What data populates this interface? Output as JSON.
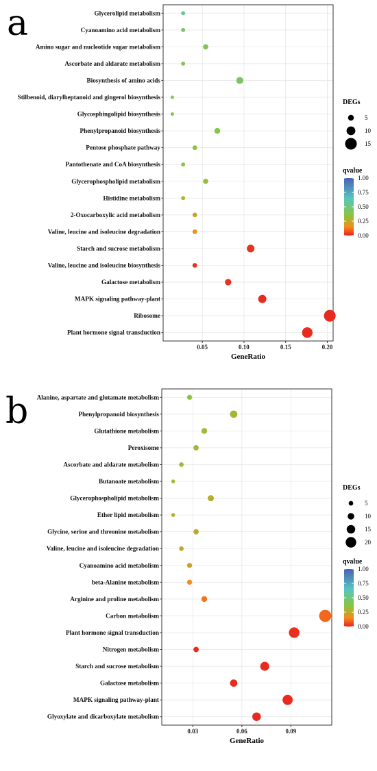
{
  "colors": {
    "grid": "#e6e6e6",
    "axis": "#333333",
    "scale": [
      "#e8231e",
      "#f58a1c",
      "#8cc43c",
      "#56c6c0",
      "#4b60b7"
    ]
  },
  "chart_data": [
    {
      "panel": "a",
      "type": "scatter",
      "xlabel": "GeneRatio",
      "xticks": [
        0.05,
        0.1,
        0.15,
        0.2
      ],
      "xtick_labels": [
        "0.05",
        "0.10",
        "0.15",
        "0.20"
      ],
      "xlim": [
        0.003,
        0.207
      ],
      "size_legend": {
        "title": "DEGs",
        "values": [
          5,
          10,
          15
        ],
        "labels": [
          "5",
          "10",
          "15"
        ]
      },
      "color_legend": {
        "title": "qvalue",
        "range": [
          0,
          1
        ],
        "labels": [
          "1.00",
          "0.75",
          "0.50",
          "0.25",
          "0.00"
        ]
      },
      "points": [
        {
          "term": "Glycerolipid metabolism",
          "x": 0.027,
          "count": 2,
          "q": 0.55
        },
        {
          "term": "Cyanoamino acid metabolism",
          "x": 0.027,
          "count": 2,
          "q": 0.45
        },
        {
          "term": "Amino sugar and nucleotide sugar metabolism",
          "x": 0.054,
          "count": 4,
          "q": 0.42
        },
        {
          "term": "Ascorbate and aldarate metabolism",
          "x": 0.027,
          "count": 2,
          "q": 0.42
        },
        {
          "term": "Biosynthesis of amino acids",
          "x": 0.095,
          "count": 7,
          "q": 0.44
        },
        {
          "term": "Stilbenoid, diarylheptanoid and gingerol biosynthesis",
          "x": 0.014,
          "count": 1,
          "q": 0.4
        },
        {
          "term": "Glycosphingolipid biosynthesis",
          "x": 0.014,
          "count": 1,
          "q": 0.38
        },
        {
          "term": "Phenylpropanoid biosynthesis",
          "x": 0.068,
          "count": 5,
          "q": 0.38
        },
        {
          "term": "Pentose phosphate pathway",
          "x": 0.041,
          "count": 3,
          "q": 0.36
        },
        {
          "term": "Pantothenate and CoA biosynthesis",
          "x": 0.027,
          "count": 2,
          "q": 0.36
        },
        {
          "term": "Glycerophospholipid metabolism",
          "x": 0.054,
          "count": 4,
          "q": 0.33
        },
        {
          "term": "Histidine metabolism",
          "x": 0.027,
          "count": 2,
          "q": 0.28
        },
        {
          "term": "2-Oxocarboxylic acid metabolism",
          "x": 0.041,
          "count": 3,
          "q": 0.23
        },
        {
          "term": "Valine, leucine and isoleucine degradation",
          "x": 0.041,
          "count": 3,
          "q": 0.18
        },
        {
          "term": "Starch and sucrose metabolism",
          "x": 0.108,
          "count": 8,
          "q": 0.02
        },
        {
          "term": "Valine, leucine and isoleucine biosynthesis",
          "x": 0.041,
          "count": 3,
          "q": 0.02
        },
        {
          "term": "Galactose metabolism",
          "x": 0.081,
          "count": 6,
          "q": 0.02
        },
        {
          "term": "MAPK signaling pathway-plant",
          "x": 0.122,
          "count": 9,
          "q": 0.01
        },
        {
          "term": "Ribosome",
          "x": 0.203,
          "count": 15,
          "q": 0.01
        },
        {
          "term": "Plant hormone signal transduction",
          "x": 0.176,
          "count": 13,
          "q": 0.01
        }
      ]
    },
    {
      "panel": "b",
      "type": "scatter",
      "xlabel": "GeneRatio",
      "xticks": [
        0.03,
        0.06,
        0.09
      ],
      "xtick_labels": [
        "0.03",
        "0.06",
        "0.09"
      ],
      "xlim": [
        0.011,
        0.115
      ],
      "size_legend": {
        "title": "DEGs",
        "values": [
          5,
          10,
          15,
          20
        ],
        "labels": [
          "5",
          "10",
          "15",
          "20"
        ]
      },
      "color_legend": {
        "title": "qvalue",
        "range": [
          0,
          1
        ],
        "labels": [
          "1.00",
          "0.75",
          "0.50",
          "0.25",
          "0.00"
        ]
      },
      "points": [
        {
          "term": "Alanine, aspartate and glutamate metabolism",
          "x": 0.028,
          "count": 6,
          "q": 0.35
        },
        {
          "term": "Phenylpropanoid biosynthesis",
          "x": 0.055,
          "count": 12,
          "q": 0.3
        },
        {
          "term": "Glutathione metabolism",
          "x": 0.037,
          "count": 8,
          "q": 0.32
        },
        {
          "term": "Peroxisome",
          "x": 0.032,
          "count": 7,
          "q": 0.32
        },
        {
          "term": "Ascorbate and aldarate metabolism",
          "x": 0.023,
          "count": 5,
          "q": 0.3
        },
        {
          "term": "Butanoate metabolism",
          "x": 0.018,
          "count": 3,
          "q": 0.3
        },
        {
          "term": "Glycerophospholipid metabolism",
          "x": 0.041,
          "count": 9,
          "q": 0.28
        },
        {
          "term": "Ether lipid metabolism",
          "x": 0.018,
          "count": 3,
          "q": 0.28
        },
        {
          "term": "Glycine, serine and threonine metabolism",
          "x": 0.032,
          "count": 7,
          "q": 0.26
        },
        {
          "term": "Valine, leucine and isoleucine degradation",
          "x": 0.023,
          "count": 5,
          "q": 0.25
        },
        {
          "term": "Cyanoamino acid metabolism",
          "x": 0.028,
          "count": 6,
          "q": 0.23
        },
        {
          "term": "beta-Alanine metabolism",
          "x": 0.028,
          "count": 6,
          "q": 0.15
        },
        {
          "term": "Arginine and proline metabolism",
          "x": 0.037,
          "count": 8,
          "q": 0.12
        },
        {
          "term": "Carbon metabolism",
          "x": 0.111,
          "count": 24,
          "q": 0.1
        },
        {
          "term": "Plant hormone signal transduction",
          "x": 0.092,
          "count": 20,
          "q": 0.02
        },
        {
          "term": "Nitrogen metabolism",
          "x": 0.032,
          "count": 7,
          "q": 0.01
        },
        {
          "term": "Starch and sucrose metabolism",
          "x": 0.074,
          "count": 16,
          "q": 0.01
        },
        {
          "term": "Galactose metabolism",
          "x": 0.055,
          "count": 12,
          "q": 0.01
        },
        {
          "term": "MAPK signaling pathway-plant",
          "x": 0.088,
          "count": 19,
          "q": 0.01
        },
        {
          "term": "Glyoxylate and dicarboxylate metabolism",
          "x": 0.069,
          "count": 15,
          "q": 0.01
        }
      ]
    }
  ],
  "labels": {
    "panel_a": "a",
    "panel_b": "b"
  }
}
